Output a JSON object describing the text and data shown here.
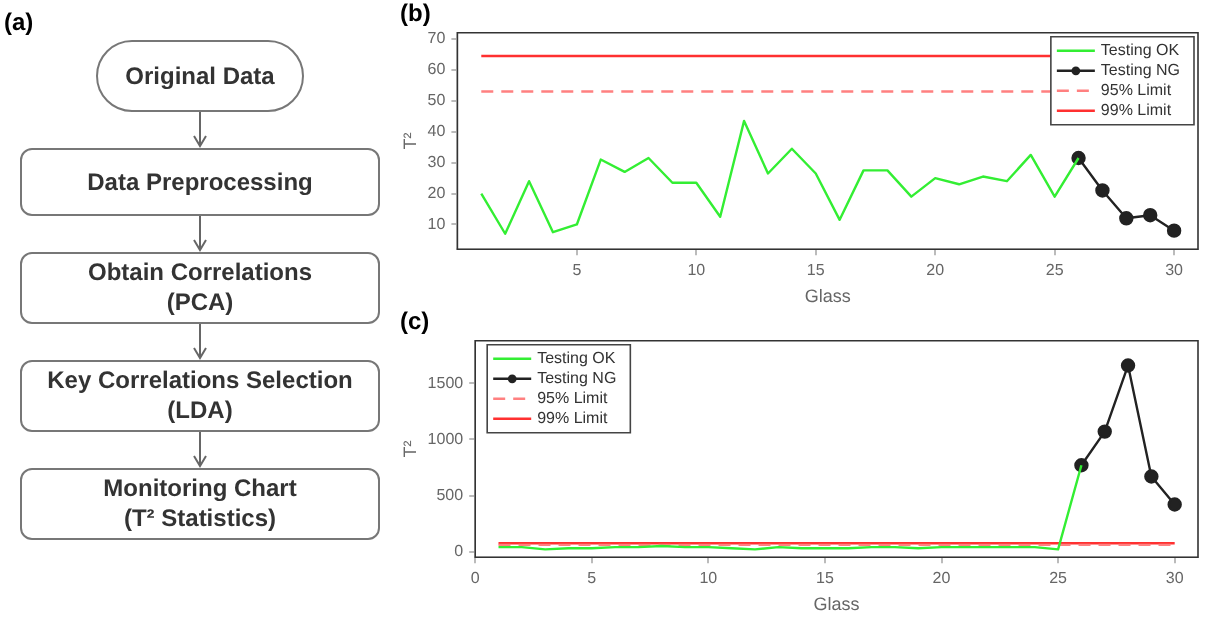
{
  "chart_data": [
    {
      "type": "other",
      "title": "(a)",
      "annotations": [
        "Original Data",
        "Data Preprocessing",
        "Obtain Correlations\n(PCA)",
        "Key Correlations Selection\n(LDA)",
        "Monitoring Chart\n(T² Statistics)"
      ]
    },
    {
      "type": "line",
      "title": "(b)",
      "xlabel": "Glass",
      "ylabel": "T²",
      "xlim": [
        0,
        31
      ],
      "xticks": [
        5,
        10,
        15,
        20,
        25,
        30
      ],
      "ylim": [
        2,
        72
      ],
      "yticks": [
        10,
        20,
        30,
        40,
        50,
        60,
        70
      ],
      "grid": false,
      "legend": "top right",
      "series": [
        {
          "name": "Testing OK",
          "color": "#33ee33",
          "marker": "none",
          "x": [
            1,
            2,
            3,
            4,
            5,
            6,
            7,
            8,
            9,
            10,
            11,
            12,
            13,
            14,
            15,
            16,
            17,
            18,
            19,
            20,
            21,
            22,
            23,
            24,
            25,
            26
          ],
          "values": [
            20,
            7,
            24,
            7.5,
            10,
            31,
            27,
            31.5,
            23.5,
            23.5,
            12.5,
            43.5,
            26.5,
            34.5,
            26.5,
            11.5,
            27.5,
            27.5,
            19,
            25,
            23,
            25.5,
            24,
            32.5,
            19,
            31.5
          ]
        },
        {
          "name": "Testing NG",
          "color": "#222222",
          "marker": "circle",
          "x": [
            26,
            27,
            28,
            29,
            30
          ],
          "values": [
            31.5,
            21,
            12,
            13,
            8
          ]
        }
      ],
      "ref_lines": [
        {
          "axis": "y",
          "value": 53,
          "label": "95% Limit",
          "color": "#ff8080",
          "line_style": "dashed"
        },
        {
          "axis": "y",
          "value": 64.5,
          "label": "99% Limit",
          "color": "#ff3030",
          "line_style": "solid"
        }
      ]
    },
    {
      "type": "line",
      "title": "(c)",
      "xlabel": "Glass",
      "ylabel": "T²",
      "xlim": [
        0,
        31
      ],
      "xticks": [
        0,
        5,
        10,
        15,
        20,
        25,
        30
      ],
      "ylim": [
        -50,
        1880
      ],
      "yticks": [
        0,
        500,
        1000,
        1500
      ],
      "grid": false,
      "legend": "top left",
      "series": [
        {
          "name": "Testing OK",
          "color": "#33ee33",
          "marker": "none",
          "x": [
            1,
            2,
            3,
            4,
            5,
            6,
            7,
            8,
            9,
            10,
            11,
            12,
            13,
            14,
            15,
            16,
            17,
            18,
            19,
            20,
            21,
            22,
            23,
            24,
            25,
            26
          ],
          "values": [
            40,
            40,
            20,
            30,
            30,
            40,
            40,
            50,
            40,
            40,
            30,
            20,
            40,
            30,
            30,
            30,
            40,
            40,
            30,
            40,
            40,
            40,
            40,
            40,
            20,
            770
          ]
        },
        {
          "name": "Testing NG",
          "color": "#222222",
          "marker": "circle",
          "x": [
            26,
            27,
            28,
            29,
            30
          ],
          "values": [
            770,
            1070,
            1660,
            670,
            420
          ]
        }
      ],
      "ref_lines": [
        {
          "axis": "y",
          "value": 60,
          "label": "95% Limit",
          "color": "#ff8080",
          "line_style": "dashed"
        },
        {
          "axis": "y",
          "value": 75,
          "label": "99% Limit",
          "color": "#ff3030",
          "line_style": "solid"
        }
      ]
    }
  ]
}
